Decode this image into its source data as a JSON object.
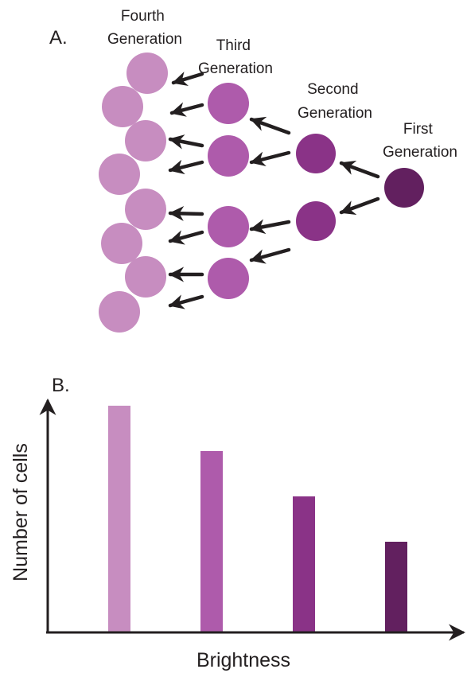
{
  "panel_a": {
    "label": "A.",
    "generations": {
      "fourth": {
        "line1": "Fourth",
        "line2": "Generation",
        "color": "#c78dc0"
      },
      "third": {
        "line1": "Third",
        "line2": "Generation",
        "color": "#ae5bab"
      },
      "second": {
        "line1": "Second",
        "line2": "Generation",
        "color": "#8a3387"
      },
      "first": {
        "line1": "First",
        "line2": "Generation",
        "color": "#62205f"
      }
    },
    "arrow_color": "#231f20"
  },
  "panel_b": {
    "label": "B.",
    "chart_data": {
      "type": "bar",
      "xlabel": "Brightness",
      "ylabel": "Number of cells",
      "categories": [
        "Fourth Generation",
        "Third Generation",
        "Second Generation",
        "First Generation"
      ],
      "values": [
        8,
        4,
        2,
        1
      ],
      "colors": [
        "#c78dc0",
        "#ae5bab",
        "#8a3387",
        "#62205f"
      ],
      "axis_scale": "log2",
      "grid": false
    }
  }
}
